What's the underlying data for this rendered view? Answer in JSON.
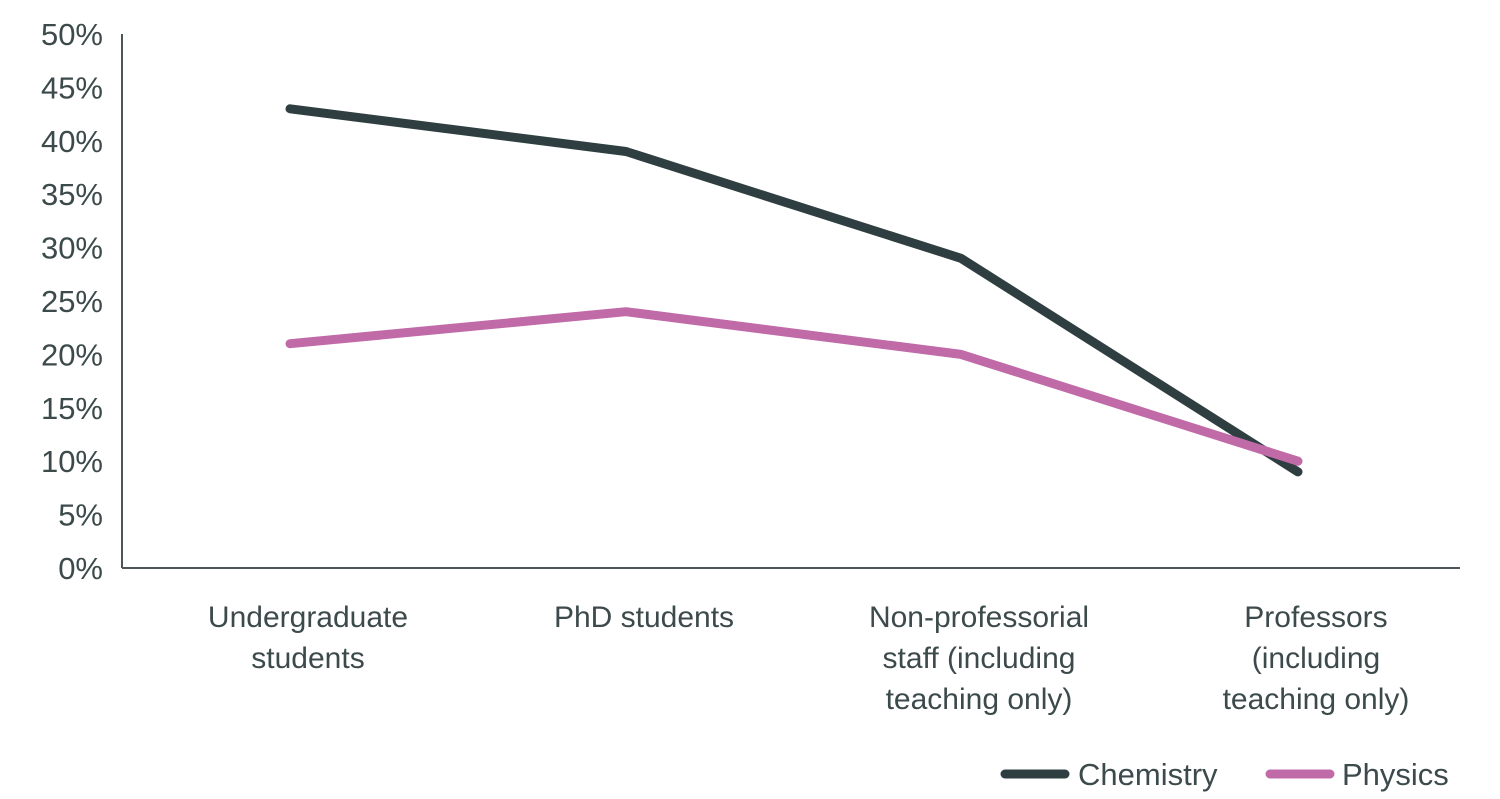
{
  "chart_data": {
    "type": "line",
    "title": "",
    "xlabel": "",
    "ylabel": "",
    "ylim": [
      0,
      50
    ],
    "y_ticks": [
      "0%",
      "5%",
      "10%",
      "15%",
      "20%",
      "25%",
      "30%",
      "35%",
      "40%",
      "45%",
      "50%"
    ],
    "grid": false,
    "legend_position": "bottom-right",
    "categories": [
      [
        "Undergraduate",
        "students"
      ],
      [
        "PhD students"
      ],
      [
        "Non-professorial",
        "staff (including",
        "teaching only)"
      ],
      [
        "Professors",
        "(including",
        "teaching only)"
      ]
    ],
    "category_labels": [
      "Undergraduate students",
      "PhD students",
      "Non-professorial staff (including teaching only)",
      "Professors (including teaching only)"
    ],
    "series": [
      {
        "name": "Chemistry",
        "color": "#2f3e40",
        "values": [
          43,
          39,
          29,
          9
        ]
      },
      {
        "name": "Physics",
        "color": "#c06aa8",
        "values": [
          21,
          24,
          20,
          10
        ]
      }
    ]
  },
  "colors": {
    "axis": "#4a5657",
    "text": "#3d4a4b"
  }
}
